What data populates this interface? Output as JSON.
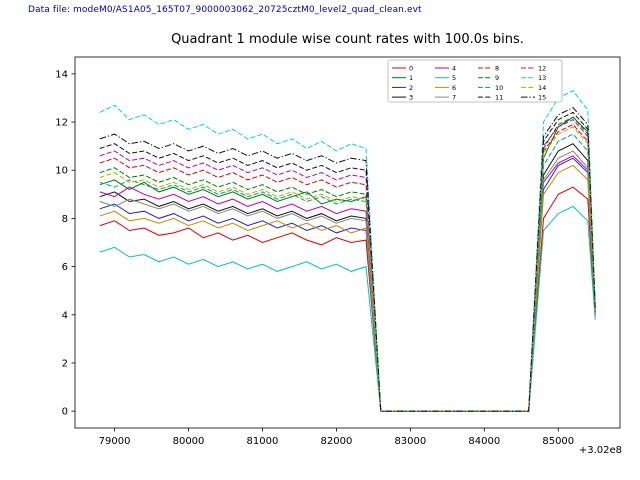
{
  "header": {
    "data_file_label": "Data file: modeM0/AS1A05_165T07_9000003062_20725cztM0_level2_quad_clean.evt",
    "data_file_color": "#0000bb"
  },
  "chart_data": {
    "type": "line",
    "title": "Quadrant 1 module wise count rates with 100.0s bins.",
    "xlabel": "",
    "ylabel": "",
    "x_offset_label": "+3.02e8",
    "xlim": [
      78465,
      85835
    ],
    "ylim": [
      -0.7,
      14.7
    ],
    "x_ticks": [
      79000,
      80000,
      81000,
      82000,
      83000,
      84000,
      85000
    ],
    "y_ticks": [
      0,
      2,
      4,
      6,
      8,
      10,
      12,
      14
    ],
    "grid": false,
    "legend_position": "upper center, 4 columns, column-major",
    "legend_columns": 4,
    "x": [
      78800,
      79000,
      79200,
      79400,
      79600,
      79800,
      80000,
      80200,
      80400,
      80600,
      80800,
      81000,
      81200,
      81400,
      81600,
      81800,
      82000,
      82200,
      82400,
      82600,
      82800,
      83000,
      83200,
      83400,
      83600,
      83800,
      84000,
      84200,
      84400,
      84600,
      84800,
      85000,
      85200,
      85400,
      85500
    ],
    "series": [
      {
        "name": "0",
        "color": "#dd0000",
        "dash": "solid",
        "values": [
          7.7,
          7.9,
          7.5,
          7.6,
          7.3,
          7.4,
          7.6,
          7.2,
          7.4,
          7.1,
          7.3,
          7.0,
          7.2,
          7.4,
          7.1,
          6.9,
          7.2,
          7.0,
          7.1,
          0,
          0,
          0,
          0,
          0,
          0,
          0,
          0,
          0,
          0,
          0,
          8.0,
          9.0,
          9.3,
          8.8,
          3.9
        ]
      },
      {
        "name": "1",
        "color": "#007d00",
        "dash": "solid",
        "values": [
          9.4,
          9.6,
          9.2,
          9.5,
          9.1,
          9.3,
          9.0,
          9.2,
          8.9,
          9.1,
          8.8,
          9.0,
          8.7,
          8.9,
          9.1,
          8.6,
          8.8,
          8.7,
          8.9,
          0,
          0,
          0,
          0,
          0,
          0,
          0,
          0,
          0,
          0,
          0,
          10.5,
          11.8,
          12.2,
          11.6,
          4.2
        ]
      },
      {
        "name": "2",
        "color": "#2222cc",
        "dash": "solid",
        "values": [
          8.4,
          8.6,
          8.2,
          8.3,
          8.0,
          8.2,
          7.9,
          8.1,
          7.8,
          8.0,
          7.7,
          7.9,
          7.6,
          7.8,
          7.5,
          7.7,
          7.4,
          7.6,
          7.5,
          0,
          0,
          0,
          0,
          0,
          0,
          0,
          0,
          0,
          0,
          0,
          9.2,
          10.2,
          10.5,
          9.9,
          4.0
        ]
      },
      {
        "name": "3",
        "color": "#111111",
        "dash": "solid",
        "values": [
          8.9,
          9.1,
          8.7,
          8.8,
          8.5,
          8.7,
          8.4,
          8.6,
          8.3,
          8.5,
          8.2,
          8.4,
          8.1,
          8.3,
          8.0,
          8.2,
          7.9,
          8.1,
          8.0,
          0,
          0,
          0,
          0,
          0,
          0,
          0,
          0,
          0,
          0,
          0,
          9.8,
          10.8,
          11.1,
          10.4,
          4.1
        ]
      },
      {
        "name": "4",
        "color": "#bb00bb",
        "dash": "solid",
        "values": [
          9.1,
          8.9,
          9.3,
          9.0,
          8.8,
          9.0,
          8.7,
          8.9,
          8.6,
          8.8,
          8.5,
          8.7,
          8.4,
          8.6,
          8.3,
          8.5,
          8.2,
          8.4,
          8.3,
          0,
          0,
          0,
          0,
          0,
          0,
          0,
          0,
          0,
          0,
          0,
          9.5,
          10.3,
          10.6,
          10.0,
          4.0
        ]
      },
      {
        "name": "5",
        "color": "#00c2c2",
        "dash": "solid",
        "values": [
          6.6,
          6.8,
          6.4,
          6.5,
          6.2,
          6.4,
          6.1,
          6.3,
          6.0,
          6.2,
          5.9,
          6.1,
          5.8,
          6.0,
          6.2,
          5.9,
          6.1,
          5.8,
          6.0,
          0,
          0,
          0,
          0,
          0,
          0,
          0,
          0,
          0,
          0,
          0,
          7.5,
          8.2,
          8.5,
          7.9,
          3.8
        ]
      },
      {
        "name": "6",
        "color": "#cc8800",
        "dash": "solid",
        "values": [
          8.1,
          8.3,
          7.9,
          8.0,
          7.8,
          8.0,
          7.7,
          7.9,
          7.6,
          7.8,
          7.5,
          7.7,
          7.9,
          7.6,
          7.8,
          7.5,
          7.7,
          7.4,
          7.6,
          0,
          0,
          0,
          0,
          0,
          0,
          0,
          0,
          0,
          0,
          0,
          9.0,
          9.9,
          10.2,
          9.6,
          4.0
        ]
      },
      {
        "name": "7",
        "color": "#888888",
        "dash": "solid",
        "values": [
          8.7,
          8.5,
          8.8,
          8.6,
          8.4,
          8.6,
          8.3,
          8.5,
          8.2,
          8.4,
          8.1,
          8.3,
          8.0,
          8.2,
          7.9,
          8.1,
          7.8,
          8.0,
          7.9,
          0,
          0,
          0,
          0,
          0,
          0,
          0,
          0,
          0,
          0,
          0,
          9.6,
          10.5,
          10.8,
          10.1,
          4.1
        ]
      },
      {
        "name": "8",
        "color": "#dd0000",
        "dash": "dashed",
        "values": [
          10.3,
          10.5,
          10.1,
          10.2,
          9.9,
          10.1,
          9.8,
          10.0,
          9.7,
          9.9,
          9.6,
          9.8,
          9.5,
          9.7,
          9.4,
          9.6,
          9.3,
          9.5,
          9.4,
          0,
          0,
          0,
          0,
          0,
          0,
          0,
          0,
          0,
          0,
          0,
          10.8,
          11.6,
          11.9,
          11.2,
          4.2
        ]
      },
      {
        "name": "9",
        "color": "#007d00",
        "dash": "dashed",
        "values": [
          9.9,
          10.1,
          9.7,
          9.8,
          9.5,
          9.7,
          9.4,
          9.6,
          9.3,
          9.5,
          9.2,
          9.4,
          9.1,
          9.3,
          9.0,
          9.2,
          8.9,
          9.1,
          9.0,
          0,
          0,
          0,
          0,
          0,
          0,
          0,
          0,
          0,
          0,
          0,
          10.9,
          11.9,
          12.2,
          11.5,
          4.3
        ]
      },
      {
        "name": "10",
        "color": "#009999",
        "dash": "dashed",
        "values": [
          9.5,
          9.3,
          9.6,
          9.4,
          9.2,
          9.4,
          9.1,
          9.3,
          9.0,
          9.2,
          8.9,
          9.1,
          8.8,
          9.0,
          8.7,
          8.9,
          8.6,
          8.8,
          8.7,
          0,
          0,
          0,
          0,
          0,
          0,
          0,
          0,
          0,
          0,
          0,
          10.2,
          11.2,
          11.5,
          10.8,
          4.1
        ]
      },
      {
        "name": "11",
        "color": "#111111",
        "dash": "dashed",
        "values": [
          10.9,
          11.1,
          10.7,
          10.8,
          10.5,
          10.7,
          10.4,
          10.6,
          10.3,
          10.5,
          10.2,
          10.4,
          10.1,
          10.3,
          10.0,
          10.2,
          9.9,
          10.1,
          10.0,
          0,
          0,
          0,
          0,
          0,
          0,
          0,
          0,
          0,
          0,
          0,
          11.2,
          12.1,
          12.4,
          11.7,
          4.3
        ]
      },
      {
        "name": "12",
        "color": "#bb00bb",
        "dash": "dashed",
        "values": [
          10.6,
          10.8,
          10.4,
          10.5,
          10.2,
          10.4,
          10.1,
          10.3,
          10.0,
          10.2,
          9.9,
          10.1,
          9.8,
          10.0,
          9.7,
          9.9,
          9.6,
          9.8,
          9.7,
          0,
          0,
          0,
          0,
          0,
          0,
          0,
          0,
          0,
          0,
          0,
          11.0,
          11.8,
          12.1,
          11.4,
          4.2
        ]
      },
      {
        "name": "13",
        "color": "#00d4d4",
        "dash": "dashed",
        "values": [
          12.4,
          12.7,
          12.1,
          12.3,
          11.9,
          12.1,
          11.7,
          11.9,
          11.5,
          11.7,
          11.3,
          11.5,
          11.1,
          11.3,
          10.9,
          11.2,
          10.8,
          11.1,
          10.9,
          0,
          0,
          0,
          0,
          0,
          0,
          0,
          0,
          0,
          0,
          0,
          12.0,
          13.0,
          13.3,
          12.5,
          4.4
        ]
      },
      {
        "name": "14",
        "color": "#b0b000",
        "dash": "dashed",
        "values": [
          9.7,
          9.9,
          9.5,
          9.6,
          9.3,
          9.5,
          9.2,
          9.4,
          9.1,
          9.3,
          9.0,
          9.2,
          8.9,
          9.1,
          8.8,
          9.0,
          8.7,
          8.9,
          8.8,
          0,
          0,
          0,
          0,
          0,
          0,
          0,
          0,
          0,
          0,
          0,
          10.7,
          11.5,
          11.8,
          11.1,
          4.2
        ]
      },
      {
        "name": "15",
        "color": "#111111",
        "dash": "dashdot",
        "values": [
          11.3,
          11.5,
          11.1,
          11.2,
          10.9,
          11.1,
          10.8,
          11.0,
          10.7,
          10.9,
          10.6,
          10.8,
          10.5,
          10.7,
          10.4,
          10.6,
          10.3,
          10.5,
          10.4,
          0,
          0,
          0,
          0,
          0,
          0,
          0,
          0,
          0,
          0,
          0,
          11.4,
          12.3,
          12.6,
          11.9,
          4.3
        ]
      }
    ]
  }
}
